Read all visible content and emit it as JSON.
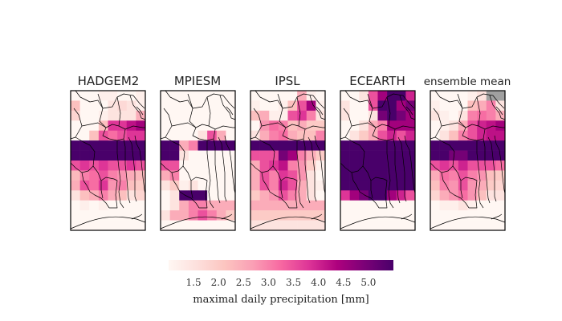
{
  "panels": [
    {
      "title": "HADGEM2",
      "grid": [
        [
          0.5,
          0.5,
          0.5,
          1.2,
          1.2,
          1.0,
          0.5,
          1.2
        ],
        [
          2.2,
          1.0,
          0.5,
          0.5,
          1.5,
          1.7,
          1.5,
          1.2
        ],
        [
          1.8,
          1.0,
          0.5,
          1.2,
          1.5,
          1.5,
          1.5,
          2.5
        ],
        [
          0.8,
          0.5,
          1.0,
          2.2,
          3.8,
          3.8,
          4.2,
          4.5
        ],
        [
          0.8,
          0.5,
          2.2,
          3.5,
          3.2,
          3.5,
          3.8,
          3.8
        ],
        [
          5.5,
          5.5,
          5.5,
          5.5,
          5.5,
          5.5,
          5.5,
          5.5
        ],
        [
          5.5,
          5.5,
          5.5,
          5.5,
          5.5,
          5.5,
          5.5,
          5.5
        ],
        [
          3.5,
          3.8,
          3.5,
          3.8,
          3.5,
          3.5,
          3.8,
          3.5
        ],
        [
          2.3,
          3.0,
          3.2,
          3.5,
          3.0,
          2.8,
          2.5,
          2.3
        ],
        [
          2.5,
          3.5,
          3.2,
          3.8,
          2.8,
          3.0,
          2.2,
          2.0
        ],
        [
          1.5,
          2.2,
          2.5,
          3.0,
          2.5,
          2.2,
          1.5,
          1.8
        ],
        [
          1.0,
          1.2,
          1.0,
          1.2,
          0.8,
          0.8,
          0.5,
          0.5
        ],
        [
          0.5,
          0.5,
          0.5,
          0.5,
          0.5,
          0.5,
          0.5,
          0.5
        ],
        [
          0.5,
          0.5,
          0.5,
          0.5,
          0.5,
          0.5,
          0.5,
          0.5
        ]
      ]
    },
    {
      "title": "MPIESM",
      "grid": [
        [
          0.5,
          0.5,
          0.5,
          0.5,
          0.5,
          0.5,
          0.5,
          0.5
        ],
        [
          0.5,
          0.5,
          0.5,
          0.5,
          0.5,
          0.5,
          0.5,
          0.5
        ],
        [
          0.5,
          0.5,
          0.5,
          0.5,
          0.5,
          0.5,
          0.5,
          0.5
        ],
        [
          0.5,
          0.5,
          0.5,
          0.5,
          0.5,
          0.5,
          0.5,
          0.5
        ],
        [
          0.5,
          0.5,
          0.5,
          0.5,
          1.5,
          3.5,
          2.5,
          0.8
        ],
        [
          5.5,
          5.5,
          2.5,
          3.0,
          5.5,
          5.5,
          5.5,
          5.5
        ],
        [
          5.5,
          5.5,
          1.5,
          1.0,
          0.5,
          0.5,
          0.5,
          0.5
        ],
        [
          3.5,
          3.5,
          0.5,
          0.5,
          0.5,
          0.5,
          0.5,
          0.5
        ],
        [
          2.5,
          3.0,
          0.5,
          0.5,
          0.5,
          0.5,
          0.5,
          0.5
        ],
        [
          1.5,
          2.0,
          1.2,
          1.5,
          0.5,
          0.5,
          0.5,
          0.5
        ],
        [
          0.5,
          1.5,
          5.5,
          5.5,
          5.5,
          0.5,
          0.5,
          0.5
        ],
        [
          0.5,
          1.5,
          2.5,
          3.0,
          3.0,
          2.5,
          2.5,
          2.5
        ],
        [
          1.5,
          2.5,
          2.5,
          3.0,
          3.5,
          3.0,
          2.5,
          2.0
        ],
        [
          0.5,
          0.5,
          0.5,
          0.5,
          0.5,
          0.5,
          0.5,
          0.5
        ]
      ]
    },
    {
      "title": "IPSL",
      "grid": [
        [
          0.5,
          0.5,
          0.5,
          0.5,
          0.5,
          2.5,
          1.2,
          0.8
        ],
        [
          1.2,
          0.5,
          0.5,
          1.2,
          2.2,
          3.5,
          4.5,
          1.2
        ],
        [
          2.2,
          2.5,
          1.2,
          1.2,
          3.5,
          3.8,
          3.0,
          1.5
        ],
        [
          1.0,
          2.8,
          3.2,
          3.0,
          2.2,
          2.5,
          2.0,
          2.0
        ],
        [
          1.5,
          2.5,
          3.0,
          3.2,
          2.5,
          2.2,
          2.2,
          3.0
        ],
        [
          5.5,
          5.5,
          5.5,
          5.5,
          5.5,
          5.5,
          5.5,
          5.5
        ],
        [
          3.5,
          3.5,
          3.5,
          5.0,
          4.5,
          3.0,
          2.5,
          2.0
        ],
        [
          2.5,
          3.5,
          3.8,
          4.2,
          3.0,
          2.8,
          2.0,
          1.2
        ],
        [
          2.5,
          3.5,
          3.0,
          3.8,
          3.5,
          2.8,
          1.5,
          0.8
        ],
        [
          2.5,
          3.5,
          3.0,
          4.0,
          3.5,
          2.5,
          1.5,
          1.2
        ],
        [
          2.0,
          2.5,
          2.8,
          3.5,
          3.0,
          2.5,
          1.5,
          1.0
        ],
        [
          2.5,
          2.5,
          2.5,
          2.5,
          2.5,
          2.5,
          2.5,
          2.5
        ],
        [
          2.0,
          2.0,
          2.0,
          2.0,
          2.0,
          2.0,
          2.0,
          2.0
        ],
        [
          1.5,
          1.5,
          1.5,
          1.5,
          1.5,
          1.5,
          1.5,
          1.5
        ]
      ]
    },
    {
      "title": "ECEARTH",
      "grid": [
        [
          0.5,
          0.5,
          1.5,
          3.5,
          4.5,
          5.5,
          5.5,
          4.0
        ],
        [
          1.5,
          0.5,
          0.5,
          3.5,
          5.5,
          5.5,
          4.5,
          5.0
        ],
        [
          1.5,
          1.0,
          0.5,
          1.5,
          5.0,
          5.5,
          5.0,
          4.5
        ],
        [
          1.0,
          1.0,
          1.5,
          2.5,
          3.0,
          4.5,
          4.5,
          4.5
        ],
        [
          1.0,
          1.5,
          2.0,
          2.5,
          3.5,
          4.0,
          3.5,
          4.0
        ],
        [
          5.5,
          5.5,
          5.5,
          5.5,
          5.5,
          5.5,
          5.5,
          5.5
        ],
        [
          5.5,
          5.5,
          5.5,
          5.5,
          5.5,
          5.5,
          5.5,
          5.5
        ],
        [
          5.5,
          5.5,
          5.5,
          5.5,
          5.5,
          5.5,
          5.5,
          5.5
        ],
        [
          5.5,
          5.5,
          5.5,
          5.5,
          5.5,
          5.5,
          5.5,
          5.5
        ],
        [
          5.5,
          5.5,
          5.5,
          5.5,
          5.5,
          5.5,
          5.5,
          5.5
        ],
        [
          3.8,
          4.5,
          5.0,
          5.5,
          5.5,
          4.5,
          4.0,
          3.5
        ],
        [
          0.5,
          0.5,
          0.5,
          0.5,
          0.5,
          0.5,
          0.5,
          0.5
        ],
        [
          0.5,
          0.5,
          0.5,
          0.5,
          0.5,
          0.5,
          0.5,
          0.5
        ],
        [
          0.5,
          0.5,
          0.5,
          0.5,
          0.5,
          0.5,
          0.5,
          0.5
        ]
      ]
    },
    {
      "title": "ensemble mean",
      "grid": [
        [
          0.5,
          0.5,
          0.5,
          0.5,
          1.2,
          1.5,
          -1,
          -1
        ],
        [
          1.2,
          1.0,
          0.5,
          1.0,
          2.2,
          2.5,
          3.0,
          1.5
        ],
        [
          1.5,
          1.2,
          0.5,
          1.5,
          3.0,
          3.2,
          3.0,
          2.5
        ],
        [
          1.0,
          1.2,
          1.5,
          2.5,
          3.5,
          4.0,
          4.2,
          4.5
        ],
        [
          1.0,
          1.5,
          2.2,
          3.0,
          3.5,
          4.0,
          4.2,
          4.2
        ],
        [
          5.5,
          5.5,
          5.5,
          5.5,
          5.5,
          5.5,
          5.5,
          5.5
        ],
        [
          5.5,
          5.5,
          5.0,
          5.0,
          5.5,
          5.5,
          5.5,
          5.5
        ],
        [
          3.5,
          3.8,
          3.5,
          4.0,
          3.5,
          3.5,
          3.5,
          3.2
        ],
        [
          2.5,
          3.2,
          3.0,
          3.5,
          3.0,
          2.8,
          2.2,
          2.0
        ],
        [
          2.2,
          3.0,
          2.8,
          3.5,
          2.8,
          2.5,
          2.0,
          1.8
        ],
        [
          1.8,
          2.5,
          2.8,
          3.2,
          2.8,
          2.2,
          1.5,
          1.5
        ],
        [
          1.0,
          1.2,
          1.2,
          1.5,
          1.2,
          1.0,
          0.8,
          0.8
        ],
        [
          0.5,
          0.5,
          0.5,
          0.5,
          0.5,
          0.5,
          0.5,
          0.5
        ],
        [
          0.5,
          0.5,
          0.5,
          0.5,
          0.5,
          0.5,
          0.5,
          0.5
        ]
      ]
    }
  ],
  "colorbar": {
    "label": "maximal daily precipitation [mm]",
    "ticks": [
      "1.5",
      "2.0",
      "2.5",
      "3.0",
      "3.5",
      "4.0",
      "4.5",
      "5.0"
    ],
    "tick_values": [
      1.5,
      2.0,
      2.5,
      3.0,
      3.5,
      4.0,
      4.5,
      5.0
    ],
    "range": [
      1.0,
      5.5
    ],
    "colormap": "RdPu",
    "colormap_stops": [
      "#fff7f3",
      "#fde0dd",
      "#fcc5c0",
      "#fa9fb5",
      "#f768a1",
      "#dd3497",
      "#ae017e",
      "#7a0177",
      "#49006a"
    ],
    "missing_color": "#a0a0a0"
  }
}
